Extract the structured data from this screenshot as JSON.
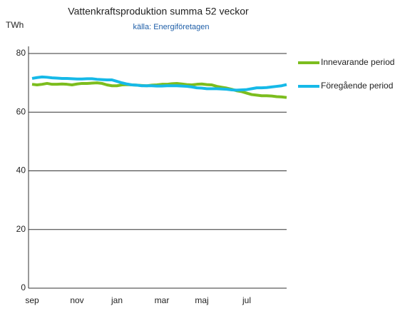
{
  "chart_data": {
    "type": "line",
    "title": "Vattenkraftsproduktion summa 52 veckor",
    "subtitle": "källa: Energiföretagen",
    "y_label": "TWh",
    "categories": [
      "sep",
      null,
      null,
      null,
      null,
      null,
      null,
      null,
      null,
      "nov",
      null,
      null,
      null,
      null,
      null,
      null,
      null,
      "jan",
      null,
      null,
      null,
      null,
      null,
      null,
      null,
      null,
      "mar",
      null,
      null,
      null,
      null,
      null,
      null,
      null,
      "maj",
      null,
      null,
      null,
      null,
      null,
      null,
      null,
      null,
      "jul",
      null,
      null,
      null,
      null,
      null,
      null,
      null,
      null
    ],
    "series": [
      {
        "name": "Innevarande period",
        "color": "#7cbd1e",
        "values": [
          69.5,
          69.3,
          69.5,
          69.8,
          69.5,
          69.5,
          69.6,
          69.5,
          69.3,
          69.6,
          69.8,
          69.8,
          69.9,
          70.0,
          69.8,
          69.3,
          69.0,
          69.0,
          69.3,
          69.4,
          69.3,
          69.2,
          69.1,
          69.0,
          69.2,
          69.3,
          69.5,
          69.5,
          69.7,
          69.8,
          69.6,
          69.4,
          69.3,
          69.5,
          69.6,
          69.4,
          69.3,
          68.8,
          68.5,
          68.2,
          67.8,
          67.3,
          67.0,
          66.5,
          66.0,
          65.8,
          65.6,
          65.6,
          65.5,
          65.3,
          65.2,
          65.0
        ]
      },
      {
        "name": "Föregående period",
        "color": "#16b9e8",
        "values": [
          71.5,
          71.8,
          72.0,
          71.9,
          71.7,
          71.6,
          71.5,
          71.5,
          71.4,
          71.3,
          71.3,
          71.4,
          71.4,
          71.2,
          71.1,
          71.0,
          71.0,
          70.5,
          70.0,
          69.6,
          69.3,
          69.2,
          69.0,
          69.0,
          69.0,
          68.9,
          68.9,
          69.0,
          69.0,
          69.0,
          68.9,
          68.8,
          68.6,
          68.3,
          68.2,
          68.0,
          68.0,
          68.0,
          67.9,
          67.8,
          67.6,
          67.5,
          67.6,
          67.7,
          68.0,
          68.3,
          68.3,
          68.4,
          68.6,
          68.8,
          69.0,
          69.4
        ]
      }
    ],
    "ylim": [
      0,
      80
    ],
    "yticks": [
      0,
      20,
      40,
      60,
      80
    ],
    "grid": true
  }
}
